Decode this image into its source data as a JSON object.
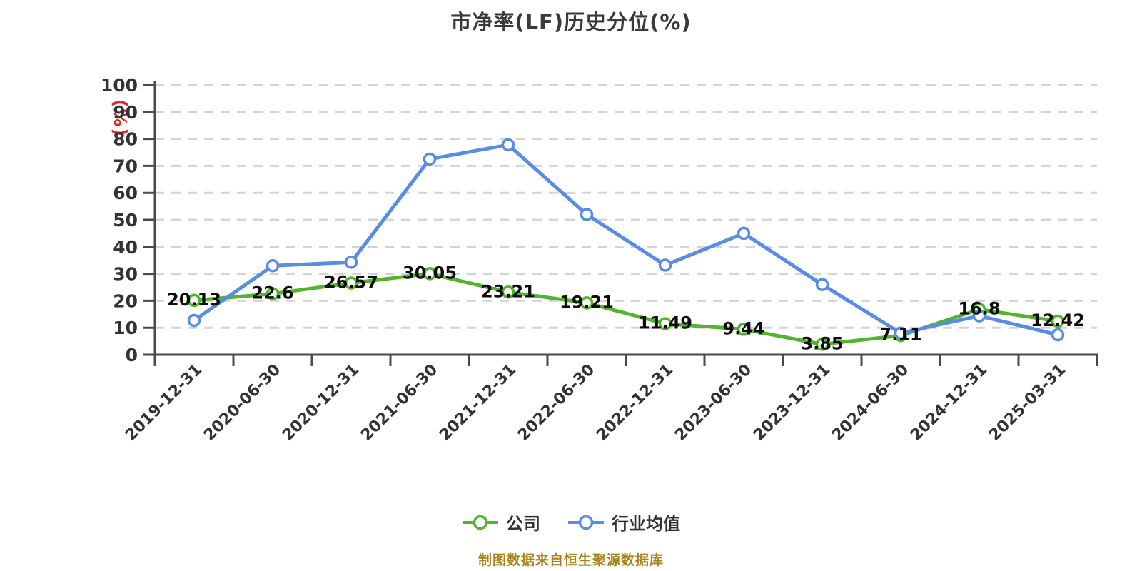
{
  "title": "市净率(LF)历史分位(%)",
  "y_axis_unit": "(%)",
  "footer": {
    "source_note": "制图数据来自恒生聚源数据库"
  },
  "colors": {
    "company_line": "#53B42C",
    "industry_line": "#5B8CE4",
    "grid": "#d4d4d4",
    "axis": "#4a4a4a",
    "tick_label": "#333333",
    "data_label": "#0d0d0d",
    "title": "#3a3a3a",
    "y_unit": "#e62222",
    "footer": "#a9841c"
  },
  "legend": [
    {
      "name": "公司",
      "color": "#53B42C"
    },
    {
      "name": "行业均值",
      "color": "#5B8CE4"
    }
  ],
  "chart_data": {
    "type": "line",
    "title": "市净率(LF)历史分位(%)",
    "ylabel": "(%)",
    "xlabel": "",
    "ylim": [
      0,
      100
    ],
    "y_ticks": [
      0,
      10,
      20,
      30,
      40,
      50,
      60,
      70,
      80,
      90,
      100
    ],
    "grid": "horizontal-dashed",
    "legend_position": "bottom",
    "x_label_rotation": 45,
    "categories": [
      "2019-12-31",
      "2020-06-30",
      "2020-12-31",
      "2021-06-30",
      "2021-12-31",
      "2022-06-30",
      "2022-12-31",
      "2023-06-30",
      "2023-12-31",
      "2024-06-30",
      "2024-12-31",
      "2025-03-31"
    ],
    "series": [
      {
        "name": "公司",
        "color": "#53B42C",
        "show_labels": true,
        "values": [
          20.13,
          22.6,
          26.57,
          30.05,
          23.21,
          19.21,
          11.49,
          9.44,
          3.85,
          7.11,
          16.8,
          12.42
        ]
      },
      {
        "name": "行业均值",
        "color": "#5B8CE4",
        "show_labels": false,
        "values": [
          12.7,
          33,
          34.3,
          72.5,
          77.8,
          52,
          33.2,
          45,
          26,
          8,
          14.4,
          7.4
        ]
      }
    ]
  }
}
